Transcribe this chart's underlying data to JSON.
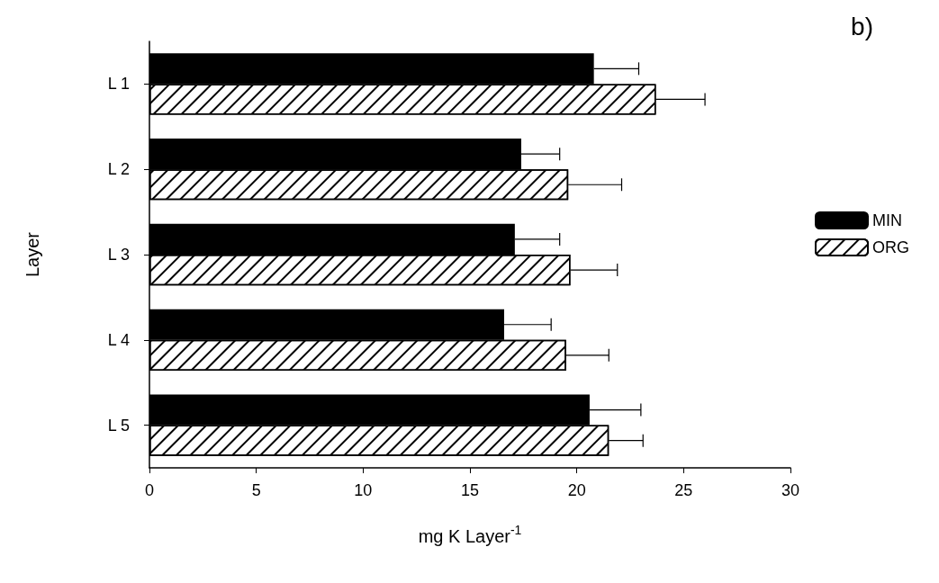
{
  "chart_data": {
    "type": "bar",
    "orientation": "horizontal",
    "title": "b)",
    "xlabel": "mg K Layer$^{-1}$",
    "ylabel": "Layer",
    "categories": [
      "L 1",
      "L 2",
      "L 3",
      "L 4",
      "L 5"
    ],
    "series": [
      {
        "name": "MIN",
        "color": "#000000",
        "values": [
          20.8,
          17.4,
          17.1,
          16.6,
          20.6
        ],
        "errors": [
          [
            20.8,
            22.9
          ],
          [
            17.4,
            19.2
          ],
          [
            17.1,
            19.2
          ],
          [
            16.6,
            18.8
          ],
          [
            20.6,
            23.0
          ]
        ]
      },
      {
        "name": "ORG",
        "color": "#ffffff",
        "values": [
          23.7,
          19.6,
          19.7,
          19.5,
          21.5
        ],
        "errors": [
          [
            23.7,
            26.0
          ],
          [
            19.6,
            22.1
          ],
          [
            19.7,
            21.9
          ],
          [
            19.5,
            21.5
          ],
          [
            21.5,
            23.1
          ]
        ]
      }
    ],
    "xlim": [
      0,
      30
    ],
    "xticks": [
      0,
      5,
      10,
      15,
      20,
      25,
      30
    ],
    "grid": false,
    "legend": "right"
  }
}
